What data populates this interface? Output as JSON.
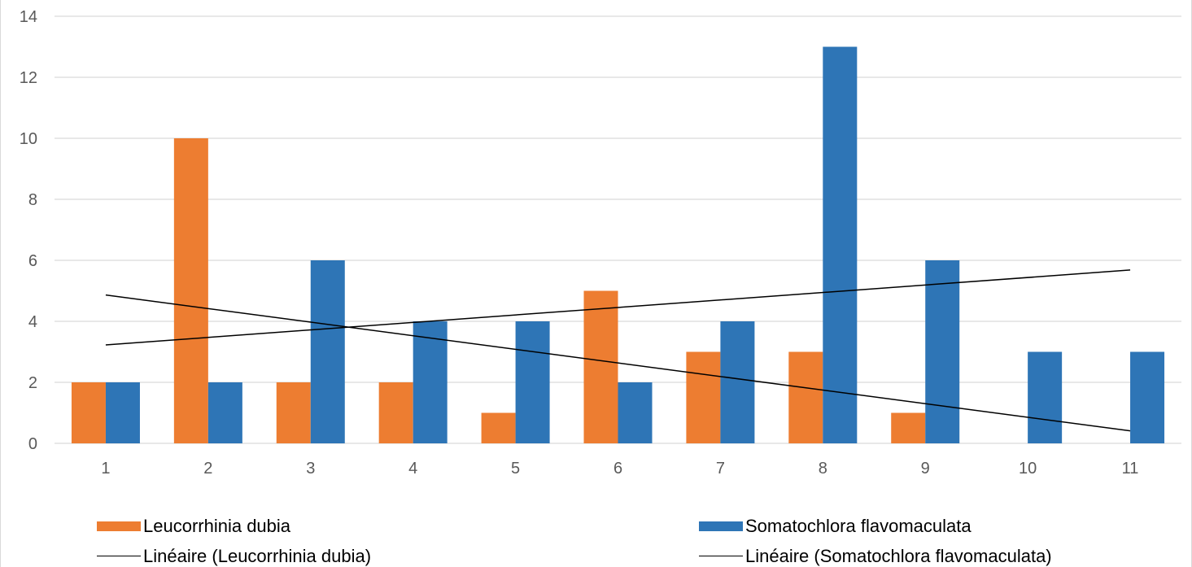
{
  "chart_data": {
    "type": "bar",
    "categories": [
      "1",
      "2",
      "3",
      "4",
      "5",
      "6",
      "7",
      "8",
      "9",
      "10",
      "11"
    ],
    "series": [
      {
        "name": "Leucorrhinia dubia",
        "color": "#ED7D31",
        "values": [
          2,
          10,
          2,
          2,
          1,
          5,
          3,
          3,
          1,
          0,
          0
        ]
      },
      {
        "name": "Somatochlora flavomaculata",
        "color": "#2E75B6",
        "values": [
          2,
          2,
          6,
          4,
          4,
          2,
          4,
          13,
          6,
          3,
          3
        ]
      }
    ],
    "trendlines": [
      {
        "name": "Linéaire (Leucorrhinia dubia)",
        "of": "Leucorrhinia dubia",
        "type": "linear",
        "color": "#000000"
      },
      {
        "name": "Linéaire (Somatochlora flavomaculata)",
        "of": "Somatochlora flavomaculata",
        "type": "linear",
        "color": "#000000"
      }
    ],
    "yticks": [
      "0",
      "2",
      "4",
      "6",
      "8",
      "10",
      "12",
      "14"
    ],
    "ylim": [
      0,
      14
    ],
    "grid": true,
    "legend_position": "bottom",
    "title": "",
    "xlabel": "",
    "ylabel": ""
  }
}
